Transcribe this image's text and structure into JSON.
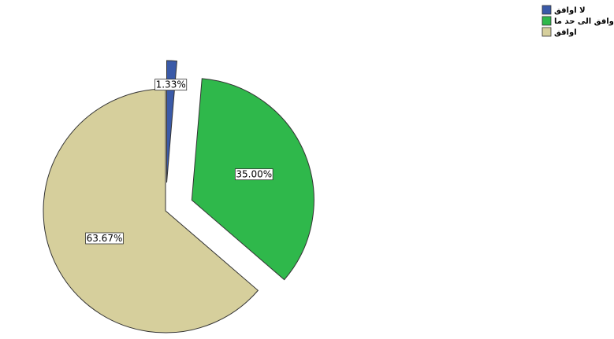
{
  "chart_data": {
    "type": "pie",
    "categories": [
      "لا اوافق",
      "اوافق الى حد ما",
      "اوافق"
    ],
    "values": [
      1.33,
      35.0,
      63.67
    ],
    "value_labels": [
      "1.33%",
      "35.00%",
      "63.67%"
    ],
    "colors": [
      "#3a5aa8",
      "#2fb84b",
      "#d6cf9c"
    ],
    "explode": [
      true,
      true,
      false
    ],
    "legend": "top-right"
  }
}
